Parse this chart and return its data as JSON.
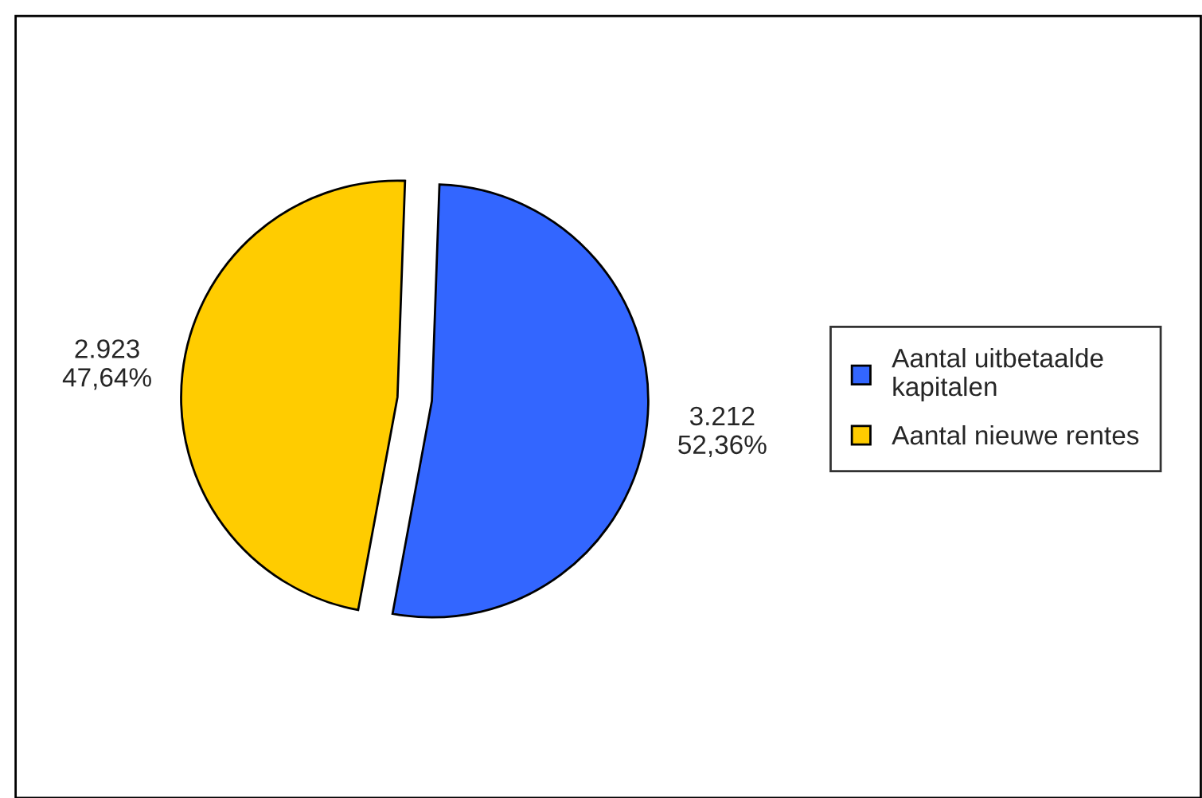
{
  "chart_data": {
    "type": "pie",
    "categories": [
      "Aantal uitbetaalde\nkapitalen",
      "Aantal nieuwe rentes"
    ],
    "values": [
      3212,
      2923
    ],
    "colors": [
      "#3366ff",
      "#ffcc00"
    ],
    "value_labels": [
      "3.212\n52,36%",
      "2.923\n47,64%"
    ],
    "legend": "right"
  }
}
